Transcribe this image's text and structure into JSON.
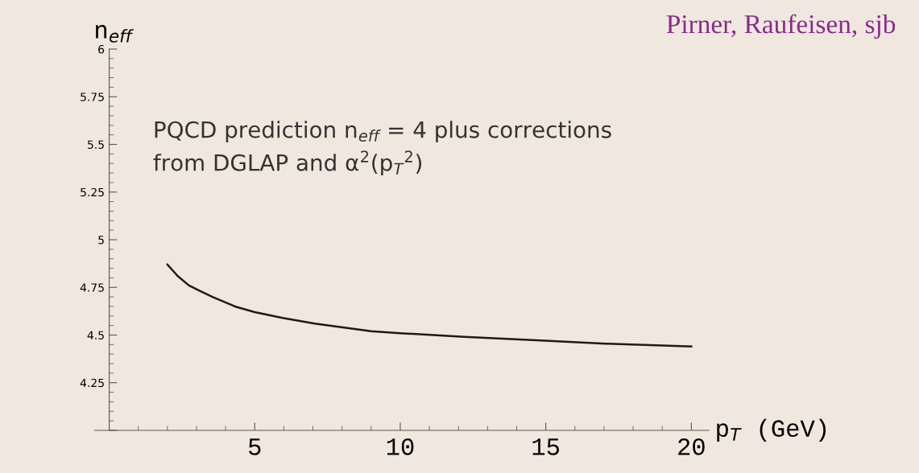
{
  "chart_data": {
    "type": "line",
    "xlabel": "p$_{T}$ (GeV)",
    "ylabel": "n$_{eff}$",
    "x": [
      2.0,
      2.35,
      2.74,
      3.13,
      3.55,
      4.32,
      5.0,
      5.96,
      7.06,
      9.0,
      10.0,
      12.2,
      14.98,
      17.05,
      20.0
    ],
    "series": [
      {
        "color": "#231816",
        "values": [
          4.87,
          4.81,
          4.76,
          4.73,
          4.7,
          4.65,
          4.62,
          4.59,
          4.56,
          4.52,
          4.51,
          4.49,
          4.47,
          4.455,
          4.44
        ]
      }
    ],
    "xlim": [
      -0.5,
      20.6
    ],
    "ylim": [
      4,
      6
    ],
    "xticks": [
      5,
      10,
      15,
      20
    ],
    "yticks": [
      {
        "value": 4,
        "label": null
      },
      4.25,
      4.5,
      4.75,
      5,
      5.25,
      5.5,
      5.75,
      6
    ],
    "annotations": [
      "PQCD prediction n$_{eff}$ = 4 plus corrections\nfrom DGLAP and α$^{2}$(p$_{T}$$^{2}$)",
      "Pirner, Raufeisen, sjb"
    ],
    "grid": false,
    "legend": false,
    "marker": "none",
    "line_style": "solid"
  }
}
